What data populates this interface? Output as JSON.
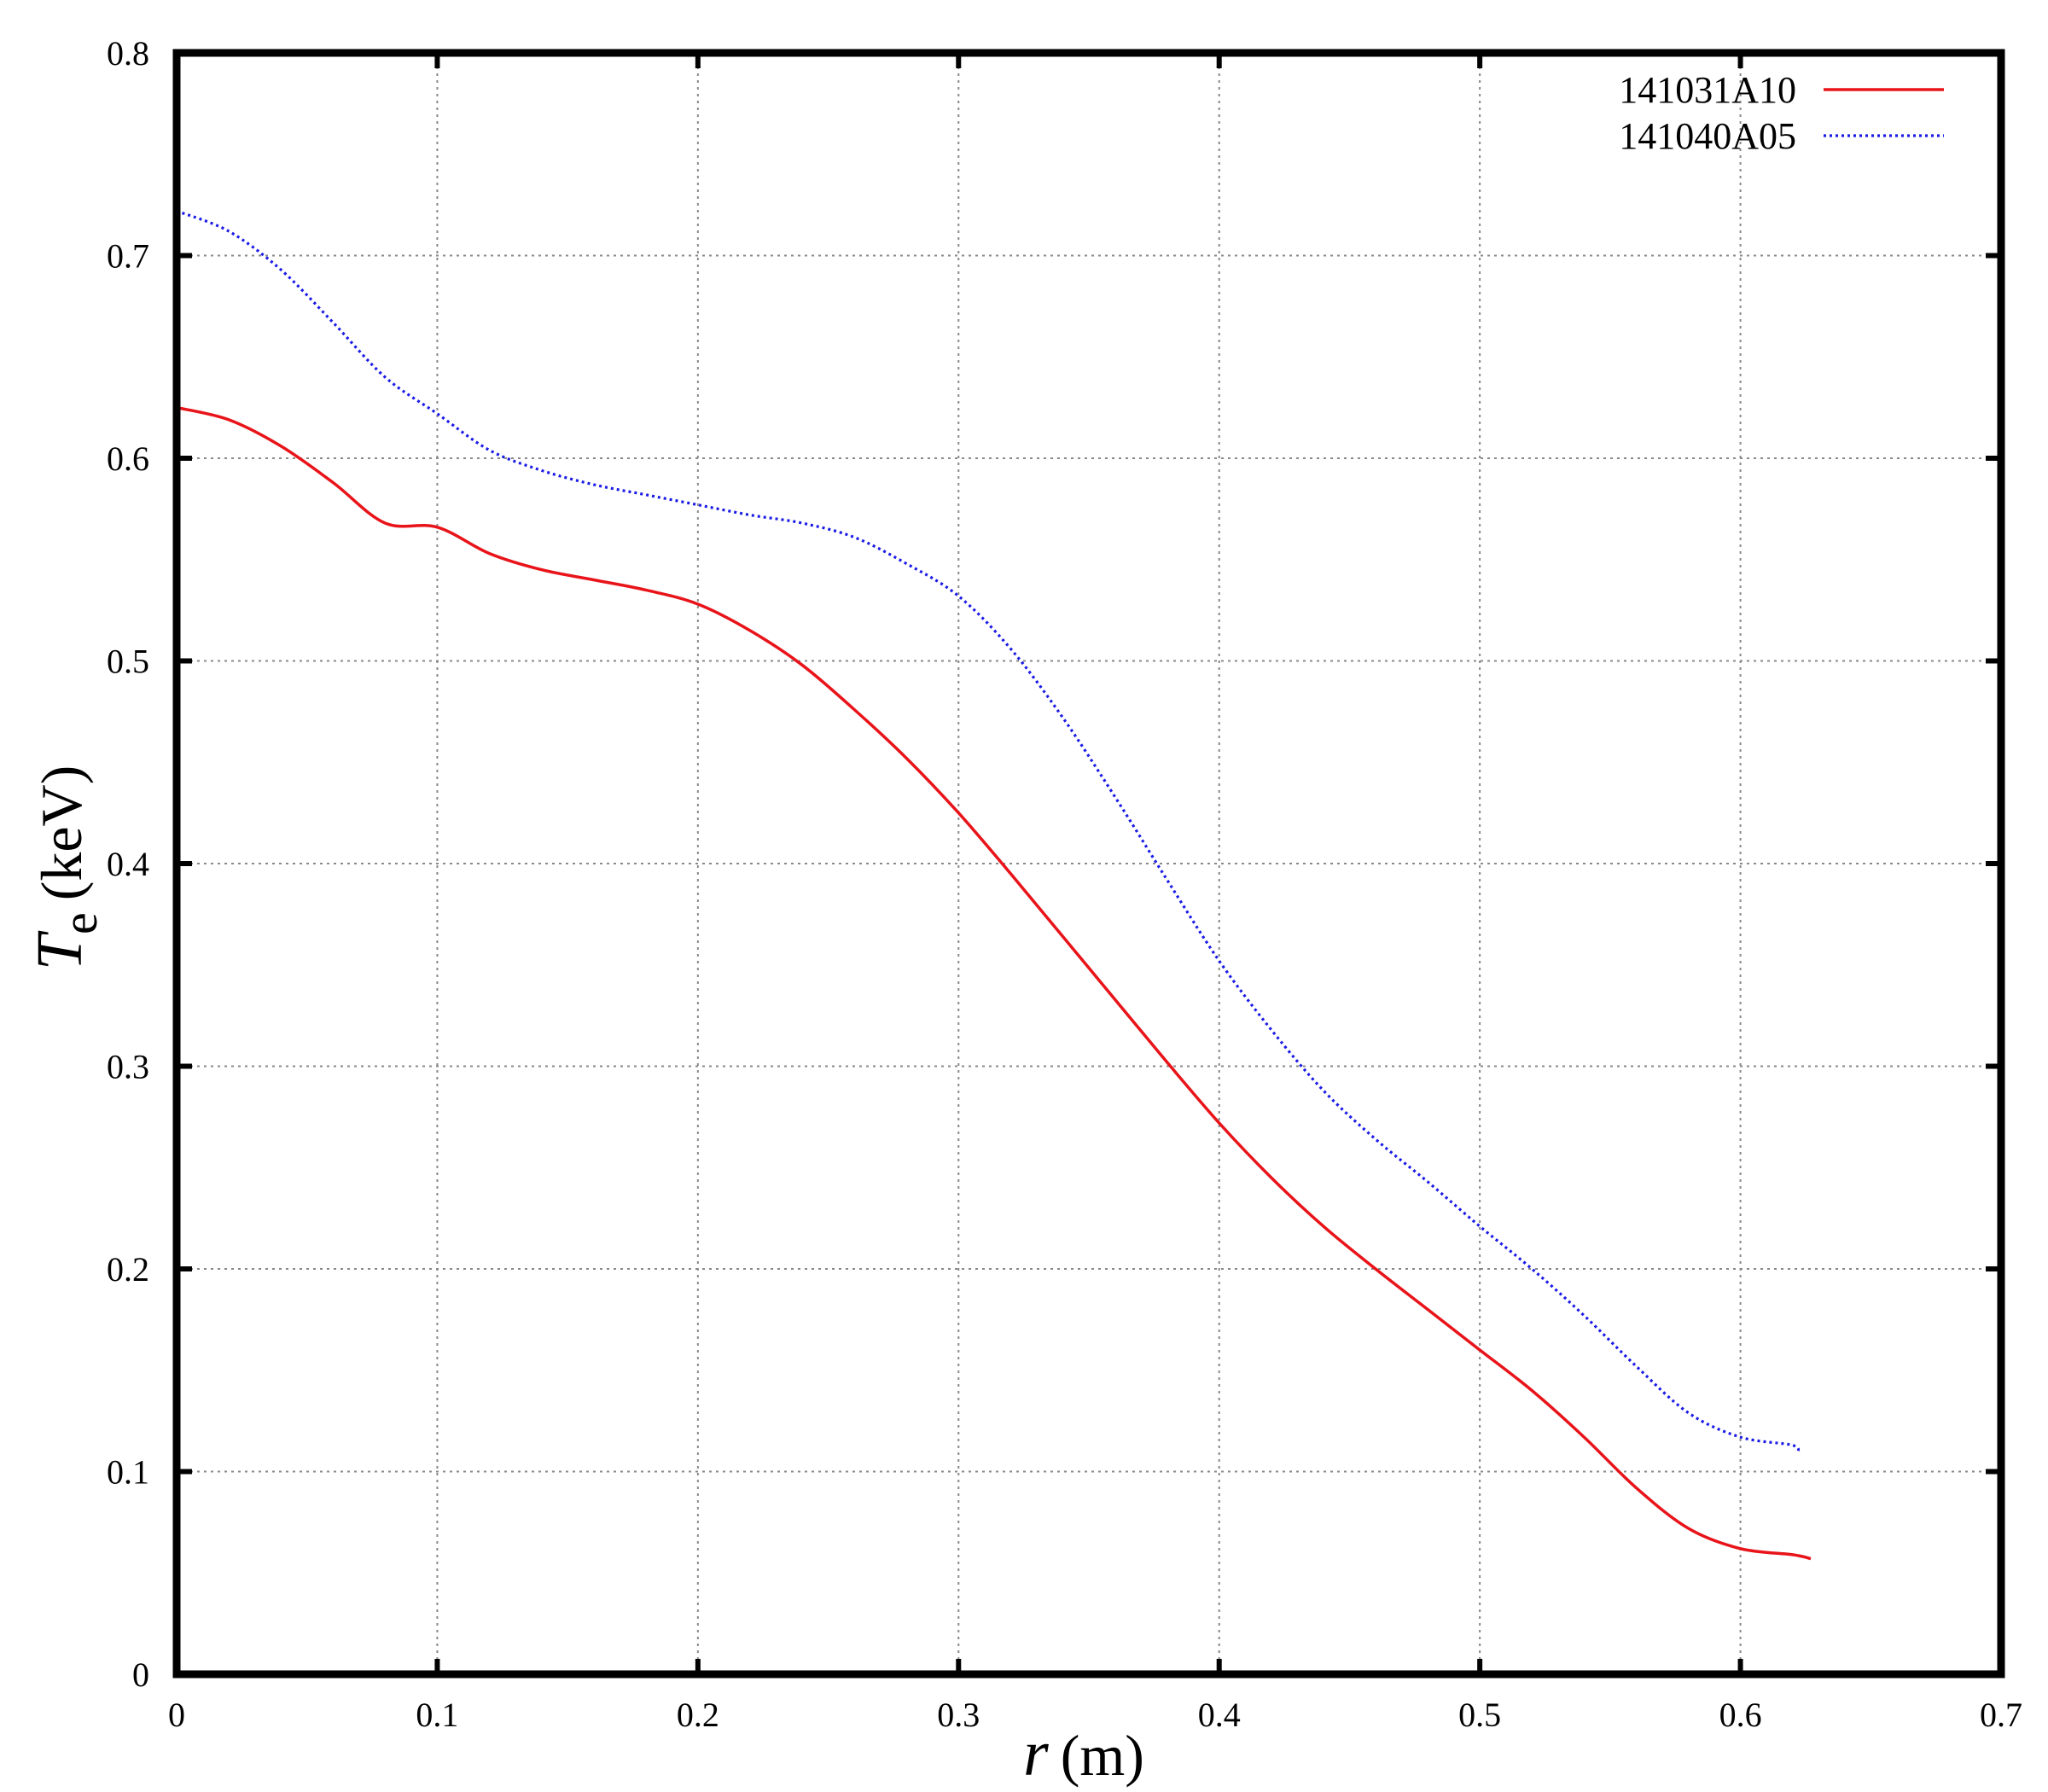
{
  "chart_data": {
    "type": "line",
    "title": "",
    "xlabel": {
      "var": "r",
      "unit": "(m)"
    },
    "ylabel": {
      "var": "T",
      "sub": "e",
      "unit": "(keV)"
    },
    "xlim": [
      0,
      0.7
    ],
    "ylim": [
      0,
      0.8
    ],
    "xticks": [
      0,
      0.1,
      0.2,
      0.3,
      0.4,
      0.5,
      0.6,
      0.7
    ],
    "yticks": [
      0,
      0.1,
      0.2,
      0.3,
      0.4,
      0.5,
      0.6,
      0.7,
      0.8
    ],
    "xtick_labels": [
      "0",
      "0.1",
      "0.2",
      "0.3",
      "0.4",
      "0.5",
      "0.6",
      "0.7"
    ],
    "ytick_labels": [
      "0",
      "0.1",
      "0.2",
      "0.3",
      "0.4",
      "0.5",
      "0.6",
      "0.7",
      "0.8"
    ],
    "grid": true,
    "legend_position": "top-right",
    "series": [
      {
        "name": "141031A10",
        "color": "#e8141a",
        "style": "solid",
        "x": [
          0,
          0.02,
          0.04,
          0.06,
          0.08,
          0.1,
          0.12,
          0.14,
          0.16,
          0.18,
          0.2,
          0.22,
          0.24,
          0.26,
          0.28,
          0.3,
          0.32,
          0.34,
          0.36,
          0.38,
          0.4,
          0.42,
          0.44,
          0.46,
          0.48,
          0.5,
          0.52,
          0.54,
          0.56,
          0.58,
          0.6,
          0.62,
          0.627
        ],
        "y": [
          0.625,
          0.619,
          0.606,
          0.588,
          0.568,
          0.566,
          0.553,
          0.545,
          0.54,
          0.535,
          0.528,
          0.515,
          0.498,
          0.476,
          0.452,
          0.425,
          0.395,
          0.364,
          0.333,
          0.302,
          0.272,
          0.245,
          0.221,
          0.2,
          0.18,
          0.16,
          0.14,
          0.117,
          0.092,
          0.072,
          0.062,
          0.059,
          0.057
        ]
      },
      {
        "name": "141040A05",
        "color": "#1a1ae6",
        "style": "dotted",
        "x": [
          0,
          0.02,
          0.04,
          0.06,
          0.08,
          0.1,
          0.12,
          0.14,
          0.16,
          0.18,
          0.2,
          0.22,
          0.24,
          0.26,
          0.28,
          0.3,
          0.32,
          0.34,
          0.36,
          0.38,
          0.4,
          0.42,
          0.44,
          0.46,
          0.48,
          0.5,
          0.52,
          0.54,
          0.56,
          0.58,
          0.6,
          0.62,
          0.622
        ],
        "y": [
          0.722,
          0.712,
          0.693,
          0.667,
          0.64,
          0.622,
          0.604,
          0.594,
          0.587,
          0.582,
          0.577,
          0.572,
          0.568,
          0.561,
          0.548,
          0.532,
          0.506,
          0.472,
          0.433,
          0.392,
          0.352,
          0.318,
          0.288,
          0.264,
          0.243,
          0.221,
          0.2,
          0.177,
          0.152,
          0.129,
          0.117,
          0.113,
          0.109
        ]
      }
    ]
  }
}
